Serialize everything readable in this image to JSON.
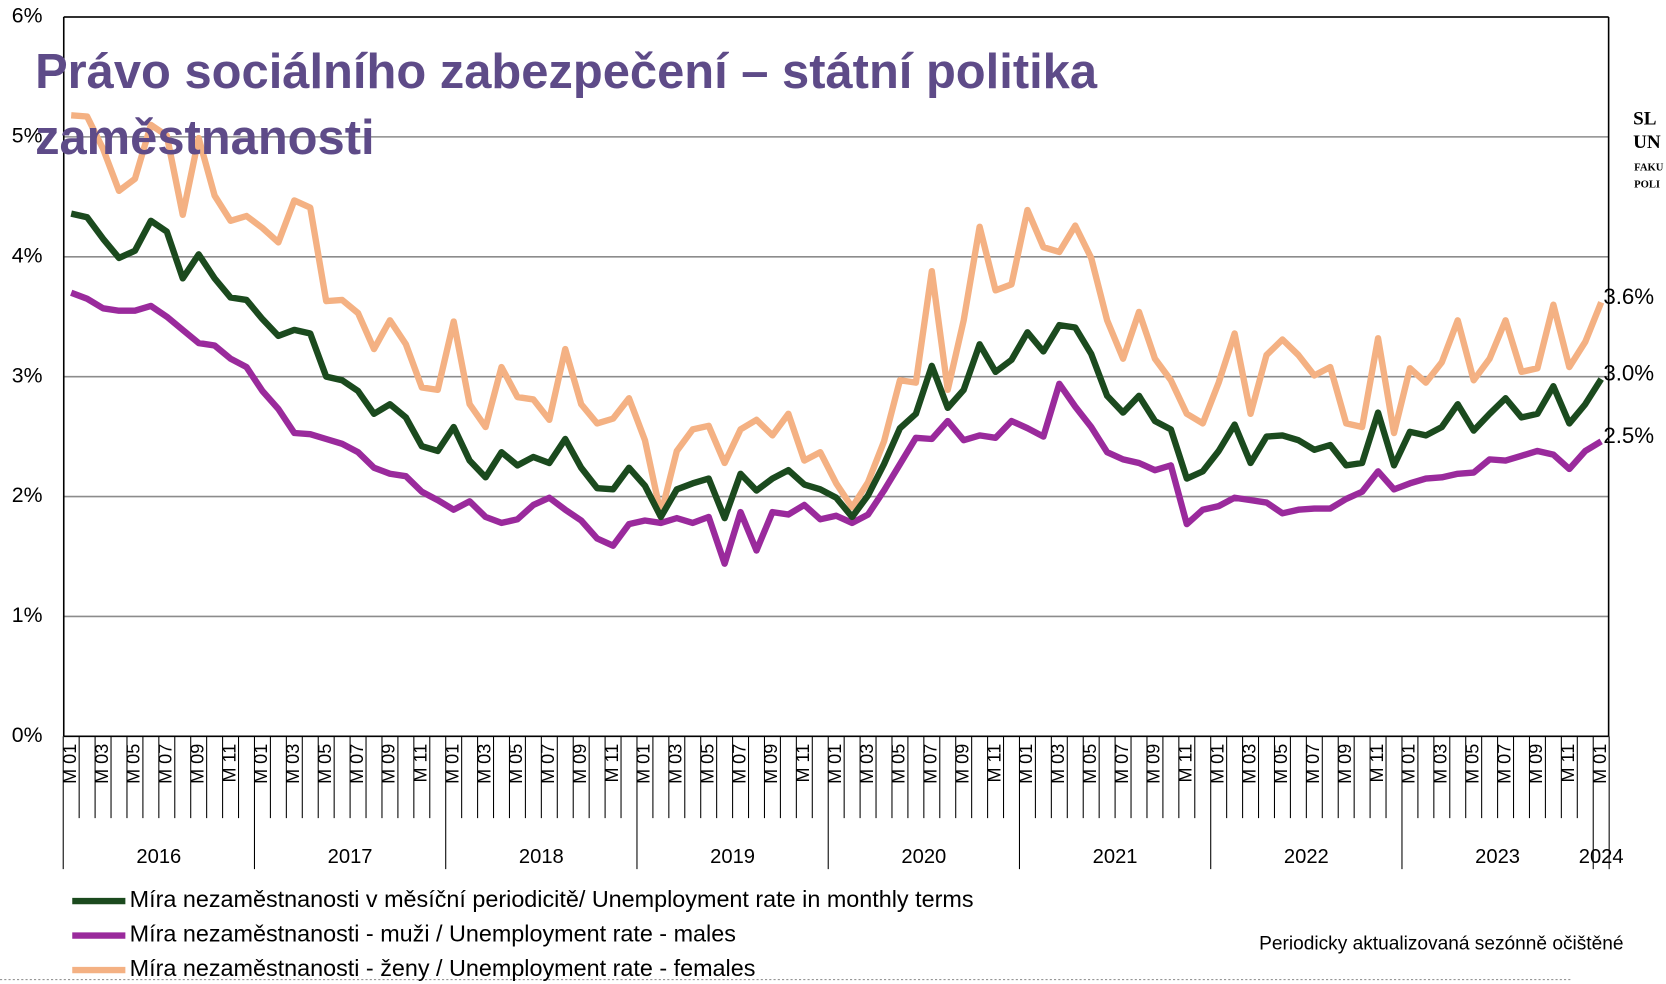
{
  "chart_data": {
    "type": "line",
    "title": "Právo sociálního zabezpečení – státní politika zaměstnanosti",
    "note": "Periodicky aktualizovaná sezónně očištěné",
    "logo": [
      "SL",
      "UN",
      "FAKU",
      "POLI"
    ],
    "categories": [
      "M 01",
      null,
      "M 03",
      null,
      "M 05",
      null,
      "M 07",
      null,
      "M 09",
      null,
      "M 11",
      null,
      "M 01",
      null,
      "M 03",
      null,
      "M 05",
      null,
      "M 07",
      null,
      "M 09",
      null,
      "M 11",
      null,
      "M 01",
      null,
      "M 03",
      null,
      "M 05",
      null,
      "M 07",
      null,
      "M 09",
      null,
      "M 11",
      null,
      "M 01",
      null,
      "M 03",
      null,
      "M 05",
      null,
      "M 07",
      null,
      "M 09",
      null,
      "M 11",
      null,
      "M 01",
      null,
      "M 03",
      null,
      "M 05",
      null,
      "M 07",
      null,
      "M 09",
      null,
      "M 11",
      null,
      "M 01",
      null,
      "M 03",
      null,
      "M 05",
      null,
      "M 07",
      null,
      "M 09",
      null,
      "M 11",
      null,
      "M 01",
      null,
      "M 03",
      null,
      "M 05",
      null,
      "M 07",
      null,
      "M 09",
      null,
      "M 11",
      null,
      "M 01",
      null,
      "M 03",
      null,
      "M 05",
      null,
      "M 07",
      null,
      "M 09",
      null,
      "M 11",
      null,
      "M 01"
    ],
    "years": [
      "2016",
      "2017",
      "2018",
      "2019",
      "2020",
      "2021",
      "2022",
      "2023",
      "2024"
    ],
    "ylim": [
      0,
      6
    ],
    "yticks": [
      {
        "value": 0,
        "label": "0%"
      },
      {
        "value": 1,
        "label": "1%"
      },
      {
        "value": 2,
        "label": "2%"
      },
      {
        "value": 3,
        "label": "3%"
      },
      {
        "value": 4,
        "label": "4%"
      },
      {
        "value": 5,
        "label": "5%"
      },
      {
        "value": 6,
        "label": "6%"
      }
    ],
    "grid": true,
    "series": [
      {
        "name": "Míra nezaměstnanosti v měsíční periodicitě/ Unemployment rate in monthly terms",
        "color": "#1b4a1e",
        "values": [
          4.36,
          4.33,
          4.15,
          3.99,
          4.05,
          4.3,
          4.21,
          3.82,
          4.02,
          3.82,
          3.66,
          3.64,
          3.48,
          3.34,
          3.39,
          3.36,
          3.0,
          2.97,
          2.88,
          2.69,
          2.77,
          2.66,
          2.42,
          2.38,
          2.58,
          2.3,
          2.16,
          2.37,
          2.26,
          2.33,
          2.28,
          2.48,
          2.24,
          2.07,
          2.06,
          2.24,
          2.09,
          1.83,
          2.06,
          2.11,
          2.15,
          1.82,
          2.19,
          2.05,
          2.15,
          2.22,
          2.1,
          2.06,
          1.99,
          1.83,
          2.01,
          2.27,
          2.57,
          2.69,
          3.09,
          2.74,
          2.89,
          3.27,
          3.04,
          3.14,
          3.37,
          3.21,
          3.43,
          3.41,
          3.19,
          2.84,
          2.7,
          2.84,
          2.63,
          2.56,
          2.15,
          2.21,
          2.38,
          2.6,
          2.28,
          2.5,
          2.51,
          2.47,
          2.39,
          2.43,
          2.26,
          2.28,
          2.7,
          2.26,
          2.54,
          2.51,
          2.58,
          2.77,
          2.55,
          2.69,
          2.82,
          2.66,
          2.69,
          2.92,
          2.61,
          2.77,
          2.98
        ],
        "value_labels": [
          null,
          null,
          null,
          null,
          null,
          null,
          null,
          null,
          null,
          null,
          null,
          null,
          null,
          null,
          null,
          null,
          null,
          null,
          null,
          null,
          null,
          null,
          null,
          null,
          null,
          null,
          null,
          null,
          null,
          null,
          null,
          null,
          null,
          null,
          null,
          null,
          null,
          null,
          null,
          null,
          null,
          null,
          null,
          null,
          null,
          null,
          null,
          null,
          null,
          null,
          null,
          null,
          null,
          null,
          null,
          null,
          null,
          null,
          null,
          null,
          null,
          null,
          null,
          null,
          null,
          null,
          null,
          null,
          null,
          null,
          null,
          null,
          null,
          null,
          null,
          null,
          null,
          null,
          null,
          null,
          null,
          null,
          null,
          null,
          null,
          null,
          null,
          null,
          null,
          null,
          null,
          null,
          null,
          null,
          null,
          null,
          "3.0%"
        ]
      },
      {
        "name": "Míra nezaměstnanosti - muži / Unemployment rate - males",
        "color": "#9a2a9c",
        "values": [
          3.7,
          3.65,
          3.57,
          3.55,
          3.55,
          3.59,
          3.5,
          3.39,
          3.28,
          3.26,
          3.15,
          3.08,
          2.88,
          2.73,
          2.53,
          2.52,
          2.48,
          2.44,
          2.37,
          2.24,
          2.19,
          2.17,
          2.04,
          1.97,
          1.89,
          1.96,
          1.83,
          1.78,
          1.81,
          1.93,
          1.99,
          1.89,
          1.8,
          1.65,
          1.59,
          1.77,
          1.8,
          1.78,
          1.82,
          1.78,
          1.83,
          1.44,
          1.87,
          1.55,
          1.87,
          1.85,
          1.93,
          1.81,
          1.84,
          1.78,
          1.85,
          2.05,
          2.27,
          2.49,
          2.48,
          2.63,
          2.47,
          2.51,
          2.49,
          2.63,
          2.57,
          2.5,
          2.94,
          2.75,
          2.58,
          2.37,
          2.31,
          2.28,
          2.22,
          2.26,
          1.77,
          1.89,
          1.92,
          1.99,
          1.97,
          1.95,
          1.86,
          1.89,
          1.9,
          1.9,
          1.98,
          2.04,
          2.21,
          2.06,
          2.11,
          2.15,
          2.16,
          2.19,
          2.2,
          2.31,
          2.3,
          2.34,
          2.38,
          2.35,
          2.23,
          2.38,
          2.46
        ],
        "value_labels": [
          null,
          null,
          null,
          null,
          null,
          null,
          null,
          null,
          null,
          null,
          null,
          null,
          null,
          null,
          null,
          null,
          null,
          null,
          null,
          null,
          null,
          null,
          null,
          null,
          null,
          null,
          null,
          null,
          null,
          null,
          null,
          null,
          null,
          null,
          null,
          null,
          null,
          null,
          null,
          null,
          null,
          null,
          null,
          null,
          null,
          null,
          null,
          null,
          null,
          null,
          null,
          null,
          null,
          null,
          null,
          null,
          null,
          null,
          null,
          null,
          null,
          null,
          null,
          null,
          null,
          null,
          null,
          null,
          null,
          null,
          null,
          null,
          null,
          null,
          null,
          null,
          null,
          null,
          null,
          null,
          null,
          null,
          null,
          null,
          null,
          null,
          null,
          null,
          null,
          null,
          null,
          null,
          null,
          null,
          null,
          null,
          "2.5%"
        ]
      },
      {
        "name": "Míra nezaměstnanosti - ženy / Unemployment rate - females",
        "color": "#f4b183",
        "values": [
          5.18,
          5.17,
          4.9,
          4.55,
          4.65,
          5.1,
          5.01,
          4.35,
          4.99,
          4.51,
          4.3,
          4.34,
          4.24,
          4.12,
          4.47,
          4.41,
          3.63,
          3.64,
          3.53,
          3.23,
          3.47,
          3.27,
          2.91,
          2.89,
          3.46,
          2.77,
          2.58,
          3.08,
          2.83,
          2.81,
          2.64,
          3.23,
          2.77,
          2.61,
          2.65,
          2.82,
          2.47,
          1.85,
          2.38,
          2.56,
          2.59,
          2.28,
          2.56,
          2.64,
          2.51,
          2.69,
          2.3,
          2.37,
          2.11,
          1.91,
          2.12,
          2.46,
          2.97,
          2.95,
          3.88,
          2.89,
          3.47,
          4.25,
          3.72,
          3.77,
          4.39,
          4.08,
          4.04,
          4.26,
          3.99,
          3.47,
          3.15,
          3.54,
          3.15,
          2.97,
          2.69,
          2.61,
          2.95,
          3.36,
          2.69,
          3.18,
          3.31,
          3.18,
          3.01,
          3.08,
          2.61,
          2.58,
          3.32,
          2.53,
          3.07,
          2.95,
          3.12,
          3.47,
          2.97,
          3.15,
          3.47,
          3.04,
          3.07,
          3.6,
          3.08,
          3.29,
          3.62
        ],
        "value_labels": [
          null,
          null,
          null,
          null,
          null,
          null,
          null,
          null,
          null,
          null,
          null,
          null,
          null,
          null,
          null,
          null,
          null,
          null,
          null,
          null,
          null,
          null,
          null,
          null,
          null,
          null,
          null,
          null,
          null,
          null,
          null,
          null,
          null,
          null,
          null,
          null,
          null,
          null,
          null,
          null,
          null,
          null,
          null,
          null,
          null,
          null,
          null,
          null,
          null,
          null,
          null,
          null,
          null,
          null,
          null,
          null,
          null,
          null,
          null,
          null,
          null,
          null,
          null,
          null,
          null,
          null,
          null,
          null,
          null,
          null,
          null,
          null,
          null,
          null,
          null,
          null,
          null,
          null,
          null,
          null,
          null,
          null,
          null,
          null,
          null,
          null,
          null,
          null,
          null,
          null,
          null,
          null,
          null,
          null,
          null,
          null,
          "3.6%"
        ]
      }
    ]
  }
}
